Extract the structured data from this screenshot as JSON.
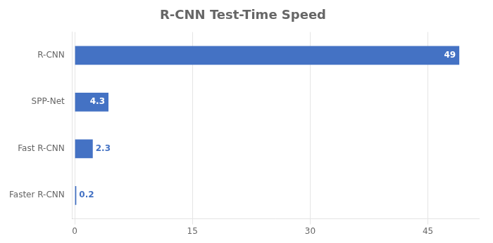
{
  "chart_data": {
    "type": "bar",
    "title": "R-CNN Test-Time Speed",
    "orientation": "horizontal",
    "categories": [
      "Faster R-CNN",
      "Fast R-CNN",
      "SPP-Net",
      "R-CNN"
    ],
    "values": [
      0.2,
      2.3,
      4.3,
      49
    ],
    "color": "#4472C4",
    "xlim": [
      -0.3,
      51.5
    ],
    "xticks": [
      0,
      15,
      30,
      45
    ],
    "grid": true,
    "data_labels": true
  }
}
